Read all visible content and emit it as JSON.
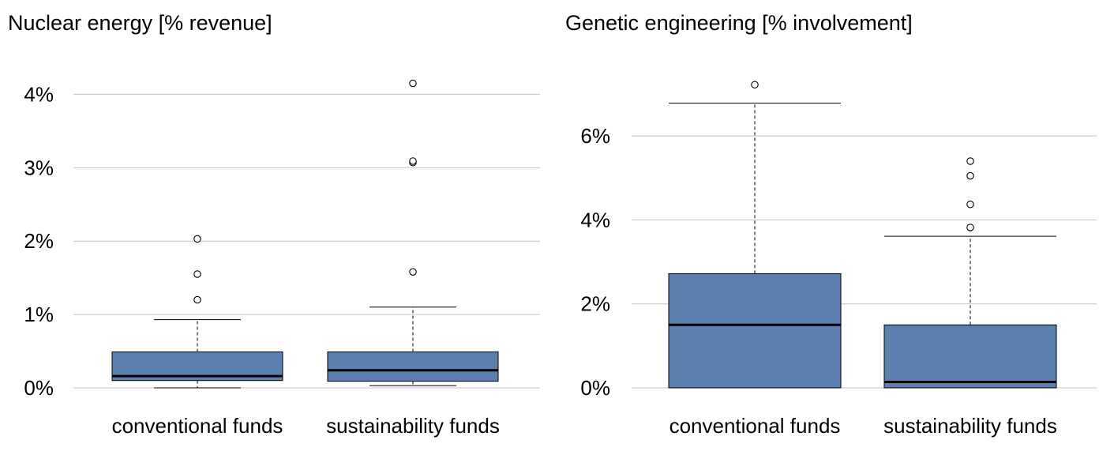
{
  "chart_data": [
    {
      "type": "boxplot",
      "title": "Nuclear energy [% revenue]",
      "xlabel": "",
      "ylabel": "",
      "ylim": [
        0,
        4.2
      ],
      "yticks": [
        0,
        1,
        2,
        3,
        4
      ],
      "ytick_labels": [
        "0%",
        "1%",
        "2%",
        "3%",
        "4%"
      ],
      "grid": true,
      "box_color": "#5b7faf",
      "categories": [
        "conventional funds",
        "sustainability funds"
      ],
      "boxes": [
        {
          "category": "conventional funds",
          "whisker_low": 0.0,
          "q1": 0.1,
          "median": 0.16,
          "q3": 0.49,
          "whisker_high": 0.93,
          "outliers": [
            1.2,
            1.55,
            2.03
          ]
        },
        {
          "category": "sustainability funds",
          "whisker_low": 0.03,
          "q1": 0.09,
          "median": 0.24,
          "q3": 0.49,
          "whisker_high": 1.1,
          "outliers": [
            1.58,
            3.07,
            3.09,
            4.15
          ]
        }
      ]
    },
    {
      "type": "boxplot",
      "title": "Genetic engineering [% involvement]",
      "xlabel": "",
      "ylabel": "",
      "ylim": [
        0,
        7.3
      ],
      "yticks": [
        0,
        2,
        4,
        6
      ],
      "ytick_labels": [
        "0%",
        "2%",
        "4%",
        "6%"
      ],
      "grid": true,
      "box_color": "#5b7faf",
      "categories": [
        "conventional funds",
        "sustainability funds"
      ],
      "boxes": [
        {
          "category": "conventional funds",
          "whisker_low": 0.0,
          "q1": 0.0,
          "median": 1.5,
          "q3": 2.72,
          "whisker_high": 6.78,
          "outliers": [
            7.22
          ]
        },
        {
          "category": "sustainability funds",
          "whisker_low": 0.0,
          "q1": 0.0,
          "median": 0.14,
          "q3": 1.5,
          "whisker_high": 3.61,
          "outliers": [
            3.82,
            4.37,
            5.05,
            5.4
          ]
        }
      ]
    }
  ]
}
